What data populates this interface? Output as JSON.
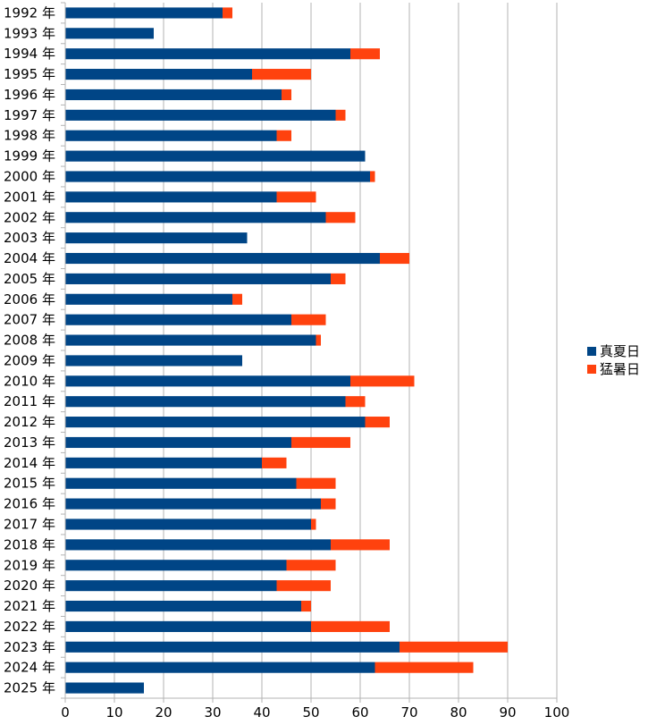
{
  "chart_data": {
    "type": "bar",
    "orientation": "horizontal",
    "stacked": true,
    "categories": [
      "1992 年",
      "1993 年",
      "1994 年",
      "1995 年",
      "1996 年",
      "1997 年",
      "1998 年",
      "1999 年",
      "2000 年",
      "2001 年",
      "2002 年",
      "2003 年",
      "2004 年",
      "2005 年",
      "2006 年",
      "2007 年",
      "2008 年",
      "2009 年",
      "2010 年",
      "2011 年",
      "2012 年",
      "2013 年",
      "2014 年",
      "2015 年",
      "2016 年",
      "2017 年",
      "2018 年",
      "2019 年",
      "2020 年",
      "2021 年",
      "2022 年",
      "2023 年",
      "2024 年",
      "2025 年"
    ],
    "series": [
      {
        "name": "真夏日",
        "color": "#004586",
        "values": [
          32,
          18,
          58,
          38,
          44,
          55,
          43,
          61,
          62,
          43,
          53,
          37,
          64,
          54,
          34,
          46,
          51,
          36,
          58,
          57,
          61,
          46,
          40,
          47,
          52,
          50,
          54,
          45,
          43,
          48,
          50,
          68,
          63,
          16
        ]
      },
      {
        "name": "猛暑日",
        "color": "#ff420e",
        "values": [
          2,
          0,
          6,
          12,
          2,
          2,
          3,
          0,
          1,
          8,
          6,
          0,
          6,
          3,
          2,
          7,
          1,
          0,
          13,
          4,
          5,
          12,
          5,
          8,
          3,
          1,
          12,
          10,
          11,
          2,
          16,
          22,
          20,
          0
        ]
      }
    ],
    "xlim": [
      0,
      100
    ],
    "xticks": [
      0,
      10,
      20,
      30,
      40,
      50,
      60,
      70,
      80,
      90,
      100
    ],
    "grid": "vertical",
    "legend_position": "right",
    "title": "",
    "xlabel": "",
    "ylabel": ""
  }
}
